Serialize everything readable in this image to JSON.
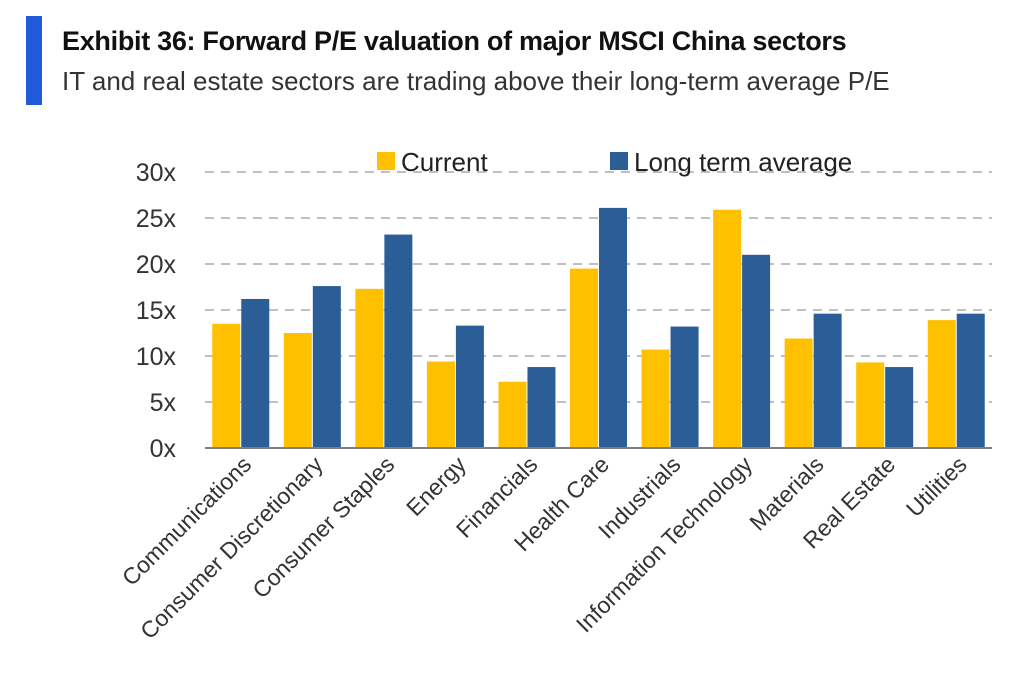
{
  "header": {
    "title": "Exhibit 36: Forward P/E valuation of major MSCI China sectors",
    "subtitle": "IT and real estate sectors are trading above their long-term average P/E"
  },
  "colors": {
    "current": "#FFC000",
    "long_term": "#2B5E97",
    "accent": "#1F5BD6",
    "grid": "#BFBFBF"
  },
  "chart_data": {
    "type": "bar",
    "title": "Exhibit 36: Forward P/E valuation of major MSCI China sectors",
    "xlabel": "",
    "ylabel": "",
    "ylim": [
      0,
      30
    ],
    "yticks": [
      0,
      5,
      10,
      15,
      20,
      25,
      30
    ],
    "ytick_labels": [
      "0x",
      "5x",
      "10x",
      "15x",
      "20x",
      "25x",
      "30x"
    ],
    "legend_position": "top",
    "grid": true,
    "categories": [
      "Communications",
      "Consumer Discretionary",
      "Consumer Staples",
      "Energy",
      "Financials",
      "Health Care",
      "Industrials",
      "Information Technology",
      "Materials",
      "Real Estate",
      "Utilities"
    ],
    "series": [
      {
        "name": "Current",
        "values": [
          13.5,
          12.5,
          17.3,
          9.4,
          7.2,
          19.5,
          10.7,
          25.9,
          11.9,
          9.3,
          13.9
        ]
      },
      {
        "name": "Long term average",
        "values": [
          16.2,
          17.6,
          23.2,
          13.3,
          8.8,
          26.1,
          13.2,
          21.0,
          14.6,
          8.8,
          14.6
        ]
      }
    ]
  }
}
